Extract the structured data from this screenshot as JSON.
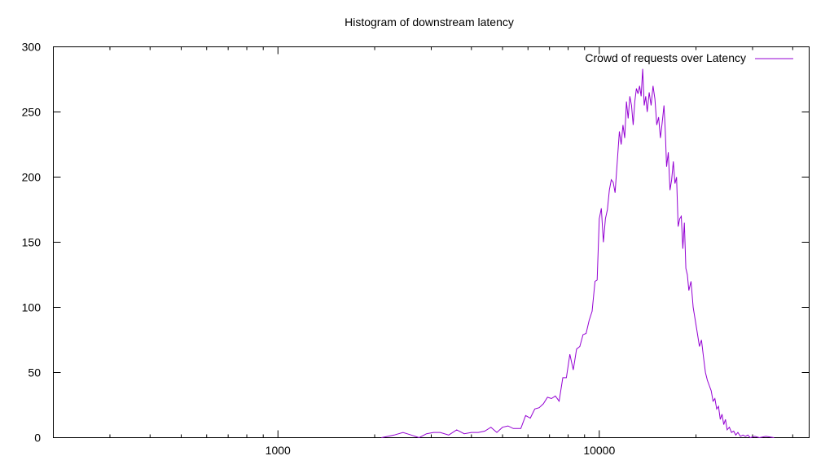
{
  "chart_data": {
    "type": "line",
    "title": "Histogram of downstream latency",
    "xlabel": "",
    "ylabel": "",
    "x_scale": "log",
    "xlim": [
      200,
      45000
    ],
    "ylim": [
      0,
      300
    ],
    "x_major_ticks": [
      1000,
      10000
    ],
    "x_major_tick_labels": [
      "1000",
      "10000"
    ],
    "y_ticks": [
      0,
      50,
      100,
      150,
      200,
      250,
      300
    ],
    "y_tick_labels": [
      "0",
      "50",
      "100",
      "150",
      "200",
      "250",
      "300"
    ],
    "grid": false,
    "legend_position": "top-right",
    "series": [
      {
        "name": "Crowd of requests over Latency",
        "color": "#9400d3",
        "points": [
          [
            2100,
            0
          ],
          [
            2300,
            2
          ],
          [
            2450,
            4
          ],
          [
            2600,
            2
          ],
          [
            2750,
            0
          ],
          [
            2900,
            3
          ],
          [
            3050,
            4
          ],
          [
            3200,
            4
          ],
          [
            3400,
            2
          ],
          [
            3600,
            6
          ],
          [
            3800,
            3
          ],
          [
            4000,
            4
          ],
          [
            4200,
            4
          ],
          [
            4400,
            5
          ],
          [
            4600,
            8
          ],
          [
            4800,
            4
          ],
          [
            5000,
            8
          ],
          [
            5200,
            9
          ],
          [
            5400,
            7
          ],
          [
            5700,
            7
          ],
          [
            5900,
            17
          ],
          [
            6100,
            15
          ],
          [
            6300,
            22
          ],
          [
            6500,
            23
          ],
          [
            6700,
            26
          ],
          [
            6900,
            31
          ],
          [
            7100,
            30
          ],
          [
            7300,
            32
          ],
          [
            7500,
            28
          ],
          [
            7700,
            46
          ],
          [
            7900,
            46
          ],
          [
            8100,
            64
          ],
          [
            8300,
            52
          ],
          [
            8500,
            68
          ],
          [
            8700,
            70
          ],
          [
            8900,
            79
          ],
          [
            9100,
            80
          ],
          [
            9300,
            90
          ],
          [
            9500,
            97
          ],
          [
            9700,
            120
          ],
          [
            9850,
            121
          ],
          [
            10000,
            168
          ],
          [
            10150,
            176
          ],
          [
            10300,
            150
          ],
          [
            10450,
            168
          ],
          [
            10600,
            175
          ],
          [
            10750,
            190
          ],
          [
            10900,
            198
          ],
          [
            11050,
            196
          ],
          [
            11200,
            188
          ],
          [
            11400,
            215
          ],
          [
            11550,
            235
          ],
          [
            11700,
            225
          ],
          [
            11850,
            240
          ],
          [
            12000,
            230
          ],
          [
            12150,
            258
          ],
          [
            12300,
            245
          ],
          [
            12450,
            262
          ],
          [
            12600,
            255
          ],
          [
            12750,
            240
          ],
          [
            12900,
            258
          ],
          [
            13050,
            268
          ],
          [
            13200,
            264
          ],
          [
            13350,
            270
          ],
          [
            13500,
            262
          ],
          [
            13650,
            283
          ],
          [
            13800,
            255
          ],
          [
            13950,
            262
          ],
          [
            14100,
            250
          ],
          [
            14300,
            265
          ],
          [
            14500,
            255
          ],
          [
            14700,
            270
          ],
          [
            14900,
            260
          ],
          [
            15100,
            240
          ],
          [
            15300,
            246
          ],
          [
            15500,
            230
          ],
          [
            15700,
            242
          ],
          [
            15900,
            255
          ],
          [
            16050,
            235
          ],
          [
            16200,
            208
          ],
          [
            16400,
            219
          ],
          [
            16600,
            190
          ],
          [
            16800,
            198
          ],
          [
            17000,
            212
          ],
          [
            17200,
            195
          ],
          [
            17400,
            200
          ],
          [
            17600,
            162
          ],
          [
            17800,
            168
          ],
          [
            18000,
            170
          ],
          [
            18200,
            145
          ],
          [
            18400,
            165
          ],
          [
            18600,
            130
          ],
          [
            18800,
            125
          ],
          [
            19000,
            113
          ],
          [
            19300,
            120
          ],
          [
            19600,
            100
          ],
          [
            19900,
            90
          ],
          [
            20200,
            80
          ],
          [
            20500,
            70
          ],
          [
            20800,
            75
          ],
          [
            21100,
            62
          ],
          [
            21400,
            50
          ],
          [
            21700,
            44
          ],
          [
            22000,
            40
          ],
          [
            22300,
            36
          ],
          [
            22600,
            28
          ],
          [
            22900,
            30
          ],
          [
            23200,
            22
          ],
          [
            23500,
            24
          ],
          [
            23800,
            14
          ],
          [
            24100,
            18
          ],
          [
            24400,
            10
          ],
          [
            24700,
            14
          ],
          [
            25000,
            6
          ],
          [
            25400,
            8
          ],
          [
            25800,
            4
          ],
          [
            26200,
            5
          ],
          [
            26600,
            2
          ],
          [
            27000,
            4
          ],
          [
            27500,
            1
          ],
          [
            28000,
            2
          ],
          [
            28500,
            1
          ],
          [
            29000,
            2
          ],
          [
            29500,
            0
          ],
          [
            30500,
            1
          ],
          [
            31500,
            0
          ],
          [
            33000,
            1
          ],
          [
            35000,
            0
          ]
        ]
      }
    ]
  }
}
